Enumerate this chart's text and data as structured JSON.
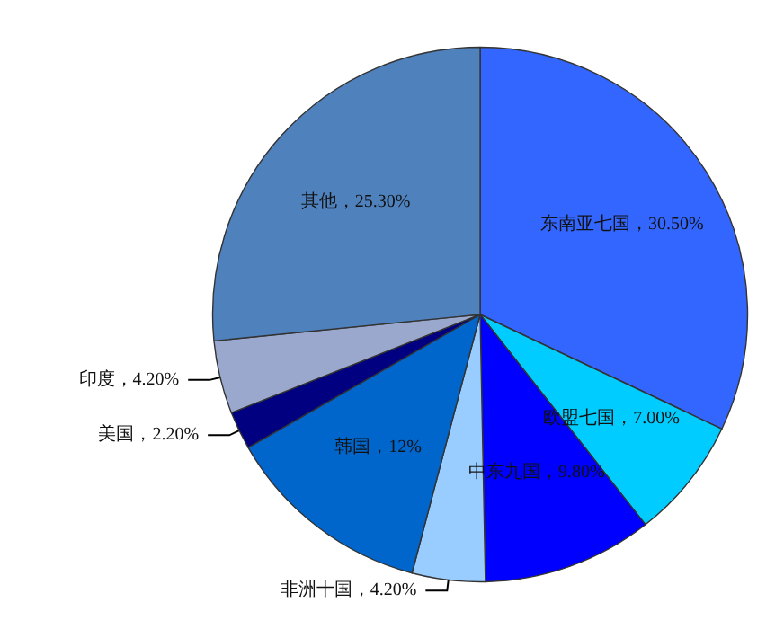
{
  "chart_data": {
    "type": "pie",
    "categories": [
      "东南亚七国",
      "欧盟七国",
      "中东九国",
      "非洲十国",
      "韩国",
      "美国",
      "印度",
      "其他"
    ],
    "values": [
      30.5,
      7.0,
      9.8,
      4.2,
      12,
      2.2,
      4.2,
      25.3
    ],
    "value_labels": [
      "30.50%",
      "7.00%",
      "9.80%",
      "4.20%",
      "12%",
      "2.20%",
      "4.20%",
      "25.30%"
    ],
    "colors": [
      "#3366ff",
      "#00ccff",
      "#0000ff",
      "#99ccff",
      "#0066cc",
      "#000080",
      "#99a8cc",
      "#4f81bd"
    ],
    "legend": false
  }
}
